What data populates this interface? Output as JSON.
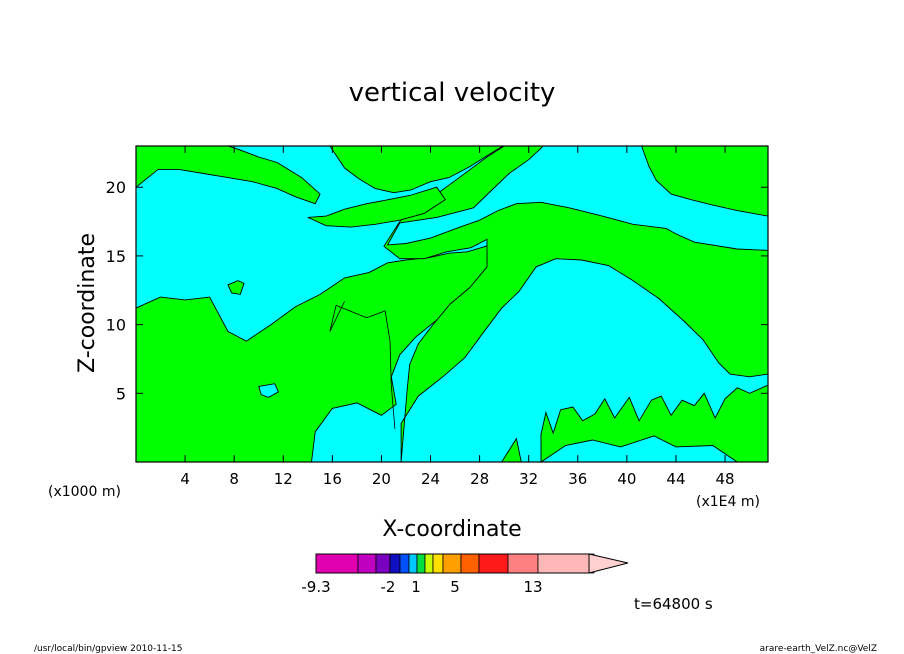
{
  "colors": {
    "background": "#ffffff",
    "upward_fill": "#00ff00",
    "downward_fill": "#00ffff",
    "contour_line": "#000000",
    "colorbar_segments": [
      "#e000b0",
      "#c000c0",
      "#7a00c0",
      "#1010c0",
      "#0050ff",
      "#00c8ff",
      "#00e040",
      "#c8ff00",
      "#ffe000",
      "#ffa000",
      "#ff6000",
      "#ff1a1a",
      "#ff8080",
      "#ffb8b8",
      "#ffd0d0"
    ]
  },
  "chart_data": {
    "type": "contour",
    "title": "vertical velocity",
    "xlabel": "X-coordinate",
    "ylabel": "Z-coordinate",
    "x_unit_left": "(x1000 m)",
    "x_unit_right": "(x1E4 m)",
    "x_ticks": [
      "4",
      "8",
      "12",
      "16",
      "20",
      "24",
      "28",
      "32",
      "36",
      "40",
      "44",
      "48"
    ],
    "y_ticks": [
      "5",
      "10",
      "15",
      "20"
    ],
    "xlim": [
      0,
      51.5
    ],
    "ylim": [
      0,
      23
    ],
    "regions": [
      {
        "sign": "positive",
        "description_color": "upward_fill"
      },
      {
        "sign": "negative",
        "description_color": "downward_fill"
      }
    ],
    "colorbar_labels": [
      "-9.3",
      "-2",
      "1",
      "5",
      "13"
    ],
    "time_label": "t=64800 s"
  },
  "footer": {
    "left": "/usr/local/bin/gpview  2010-11-15",
    "right": "arare-earth_VelZ.nc@VelZ"
  }
}
